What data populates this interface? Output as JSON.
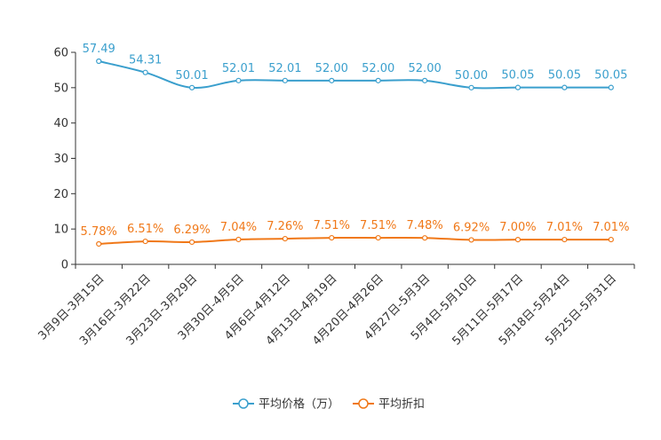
{
  "chart_data": {
    "type": "line",
    "title": "",
    "xlabel": "",
    "ylabel": "",
    "ylim": [
      0,
      60
    ],
    "yticks": [
      0,
      10,
      20,
      30,
      40,
      50,
      60
    ],
    "grid": false,
    "legend_position": "bottom",
    "categories": [
      "3月9日-3月15日",
      "3月16日-3月22日",
      "3月23日-3月29日",
      "3月30日-4月5日",
      "4月6日-4月12日",
      "4月13日-4月19日",
      "4月20日-4月26日",
      "4月27日-5月3日",
      "5月4日-5月10日",
      "5月11日-5月17日",
      "5月18日-5月24日",
      "5月25日-5月31日"
    ],
    "series": [
      {
        "name": "平均价格（万）",
        "color": "#3a9fcd",
        "values": [
          57.49,
          54.31,
          50.01,
          52.01,
          52.01,
          52.0,
          52.0,
          52.0,
          50.0,
          50.05,
          50.05,
          50.05
        ],
        "labels": [
          "57.49",
          "54.31",
          "50.01",
          "52.01",
          "52.01",
          "52.00",
          "52.00",
          "52.00",
          "50.00",
          "50.05",
          "50.05",
          "50.05"
        ]
      },
      {
        "name": "平均折扣",
        "color": "#f07818",
        "values": [
          5.78,
          6.51,
          6.29,
          7.04,
          7.26,
          7.51,
          7.51,
          7.48,
          6.92,
          7.0,
          7.01,
          7.01
        ],
        "labels": [
          "5.78%",
          "6.51%",
          "6.29%",
          "7.04%",
          "7.26%",
          "7.51%",
          "7.51%",
          "7.48%",
          "6.92%",
          "7.00%",
          "7.01%",
          "7.01%"
        ]
      }
    ]
  }
}
